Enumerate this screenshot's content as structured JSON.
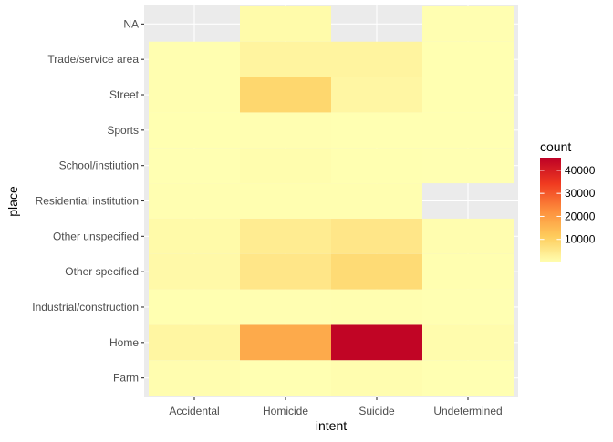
{
  "chart_data": {
    "type": "heatmap",
    "title": "",
    "xlabel": "intent",
    "ylabel": "place",
    "x_categories": [
      "Accidental",
      "Homicide",
      "Suicide",
      "Undetermined"
    ],
    "y_categories": [
      "Farm",
      "Home",
      "Industrial/construction",
      "Other specified",
      "Other unspecified",
      "Residential institution",
      "School/instiution",
      "Sports",
      "Street",
      "Trade/service area",
      "NA"
    ],
    "cells": [
      {
        "x": "Accidental",
        "y": "Farm",
        "value": 400
      },
      {
        "x": "Homicide",
        "y": "Farm",
        "value": 20
      },
      {
        "x": "Suicide",
        "y": "Farm",
        "value": 400
      },
      {
        "x": "Undetermined",
        "y": "Farm",
        "value": 10
      },
      {
        "x": "Accidental",
        "y": "Home",
        "value": 2100
      },
      {
        "x": "Homicide",
        "y": "Home",
        "value": 17500
      },
      {
        "x": "Suicide",
        "y": "Home",
        "value": 44500
      },
      {
        "x": "Undetermined",
        "y": "Home",
        "value": 600
      },
      {
        "x": "Accidental",
        "y": "Industrial/construction",
        "value": 100
      },
      {
        "x": "Homicide",
        "y": "Industrial/construction",
        "value": 150
      },
      {
        "x": "Suicide",
        "y": "Industrial/construction",
        "value": 260
      },
      {
        "x": "Undetermined",
        "y": "Industrial/construction",
        "value": 10
      },
      {
        "x": "Accidental",
        "y": "Other specified",
        "value": 1300
      },
      {
        "x": "Homicide",
        "y": "Other specified",
        "value": 5500
      },
      {
        "x": "Suicide",
        "y": "Other specified",
        "value": 8100
      },
      {
        "x": "Undetermined",
        "y": "Other specified",
        "value": 200
      },
      {
        "x": "Accidental",
        "y": "Other unspecified",
        "value": 1200
      },
      {
        "x": "Homicide",
        "y": "Other unspecified",
        "value": 4300
      },
      {
        "x": "Suicide",
        "y": "Other unspecified",
        "value": 5500
      },
      {
        "x": "Undetermined",
        "y": "Other unspecified",
        "value": 400
      },
      {
        "x": "Accidental",
        "y": "Residential institution",
        "value": 150
      },
      {
        "x": "Homicide",
        "y": "Residential institution",
        "value": 200
      },
      {
        "x": "Suicide",
        "y": "Residential institution",
        "value": 200
      },
      {
        "x": "Accidental",
        "y": "School/instiution",
        "value": 50
      },
      {
        "x": "Homicide",
        "y": "School/instiution",
        "value": 500
      },
      {
        "x": "Suicide",
        "y": "School/instiution",
        "value": 100
      },
      {
        "x": "Undetermined",
        "y": "School/instiution",
        "value": 20
      },
      {
        "x": "Accidental",
        "y": "Sports",
        "value": 100
      },
      {
        "x": "Homicide",
        "y": "Sports",
        "value": 150
      },
      {
        "x": "Suicide",
        "y": "Sports",
        "value": 50
      },
      {
        "x": "Undetermined",
        "y": "Sports",
        "value": 10
      },
      {
        "x": "Accidental",
        "y": "Street",
        "value": 300
      },
      {
        "x": "Homicide",
        "y": "Street",
        "value": 9000
      },
      {
        "x": "Suicide",
        "y": "Street",
        "value": 2000
      },
      {
        "x": "Undetermined",
        "y": "Street",
        "value": 100
      },
      {
        "x": "Accidental",
        "y": "Trade/service area",
        "value": 300
      },
      {
        "x": "Homicide",
        "y": "Trade/service area",
        "value": 2500
      },
      {
        "x": "Suicide",
        "y": "Trade/service area",
        "value": 2500
      },
      {
        "x": "Undetermined",
        "y": "Trade/service area",
        "value": 100
      },
      {
        "x": "Homicide",
        "y": "NA",
        "value": 1000
      },
      {
        "x": "Undetermined",
        "y": "NA",
        "value": 150
      }
    ],
    "legend": {
      "title": "count",
      "breaks": [
        10000,
        20000,
        30000,
        40000
      ],
      "limits": [
        0,
        45500
      ],
      "colors": [
        "#ffffb2",
        "#fecc5c",
        "#fd8d3c",
        "#f03b20",
        "#bd0026"
      ],
      "placement": "right"
    },
    "panel_background": "#ebebeb",
    "grid": true
  }
}
